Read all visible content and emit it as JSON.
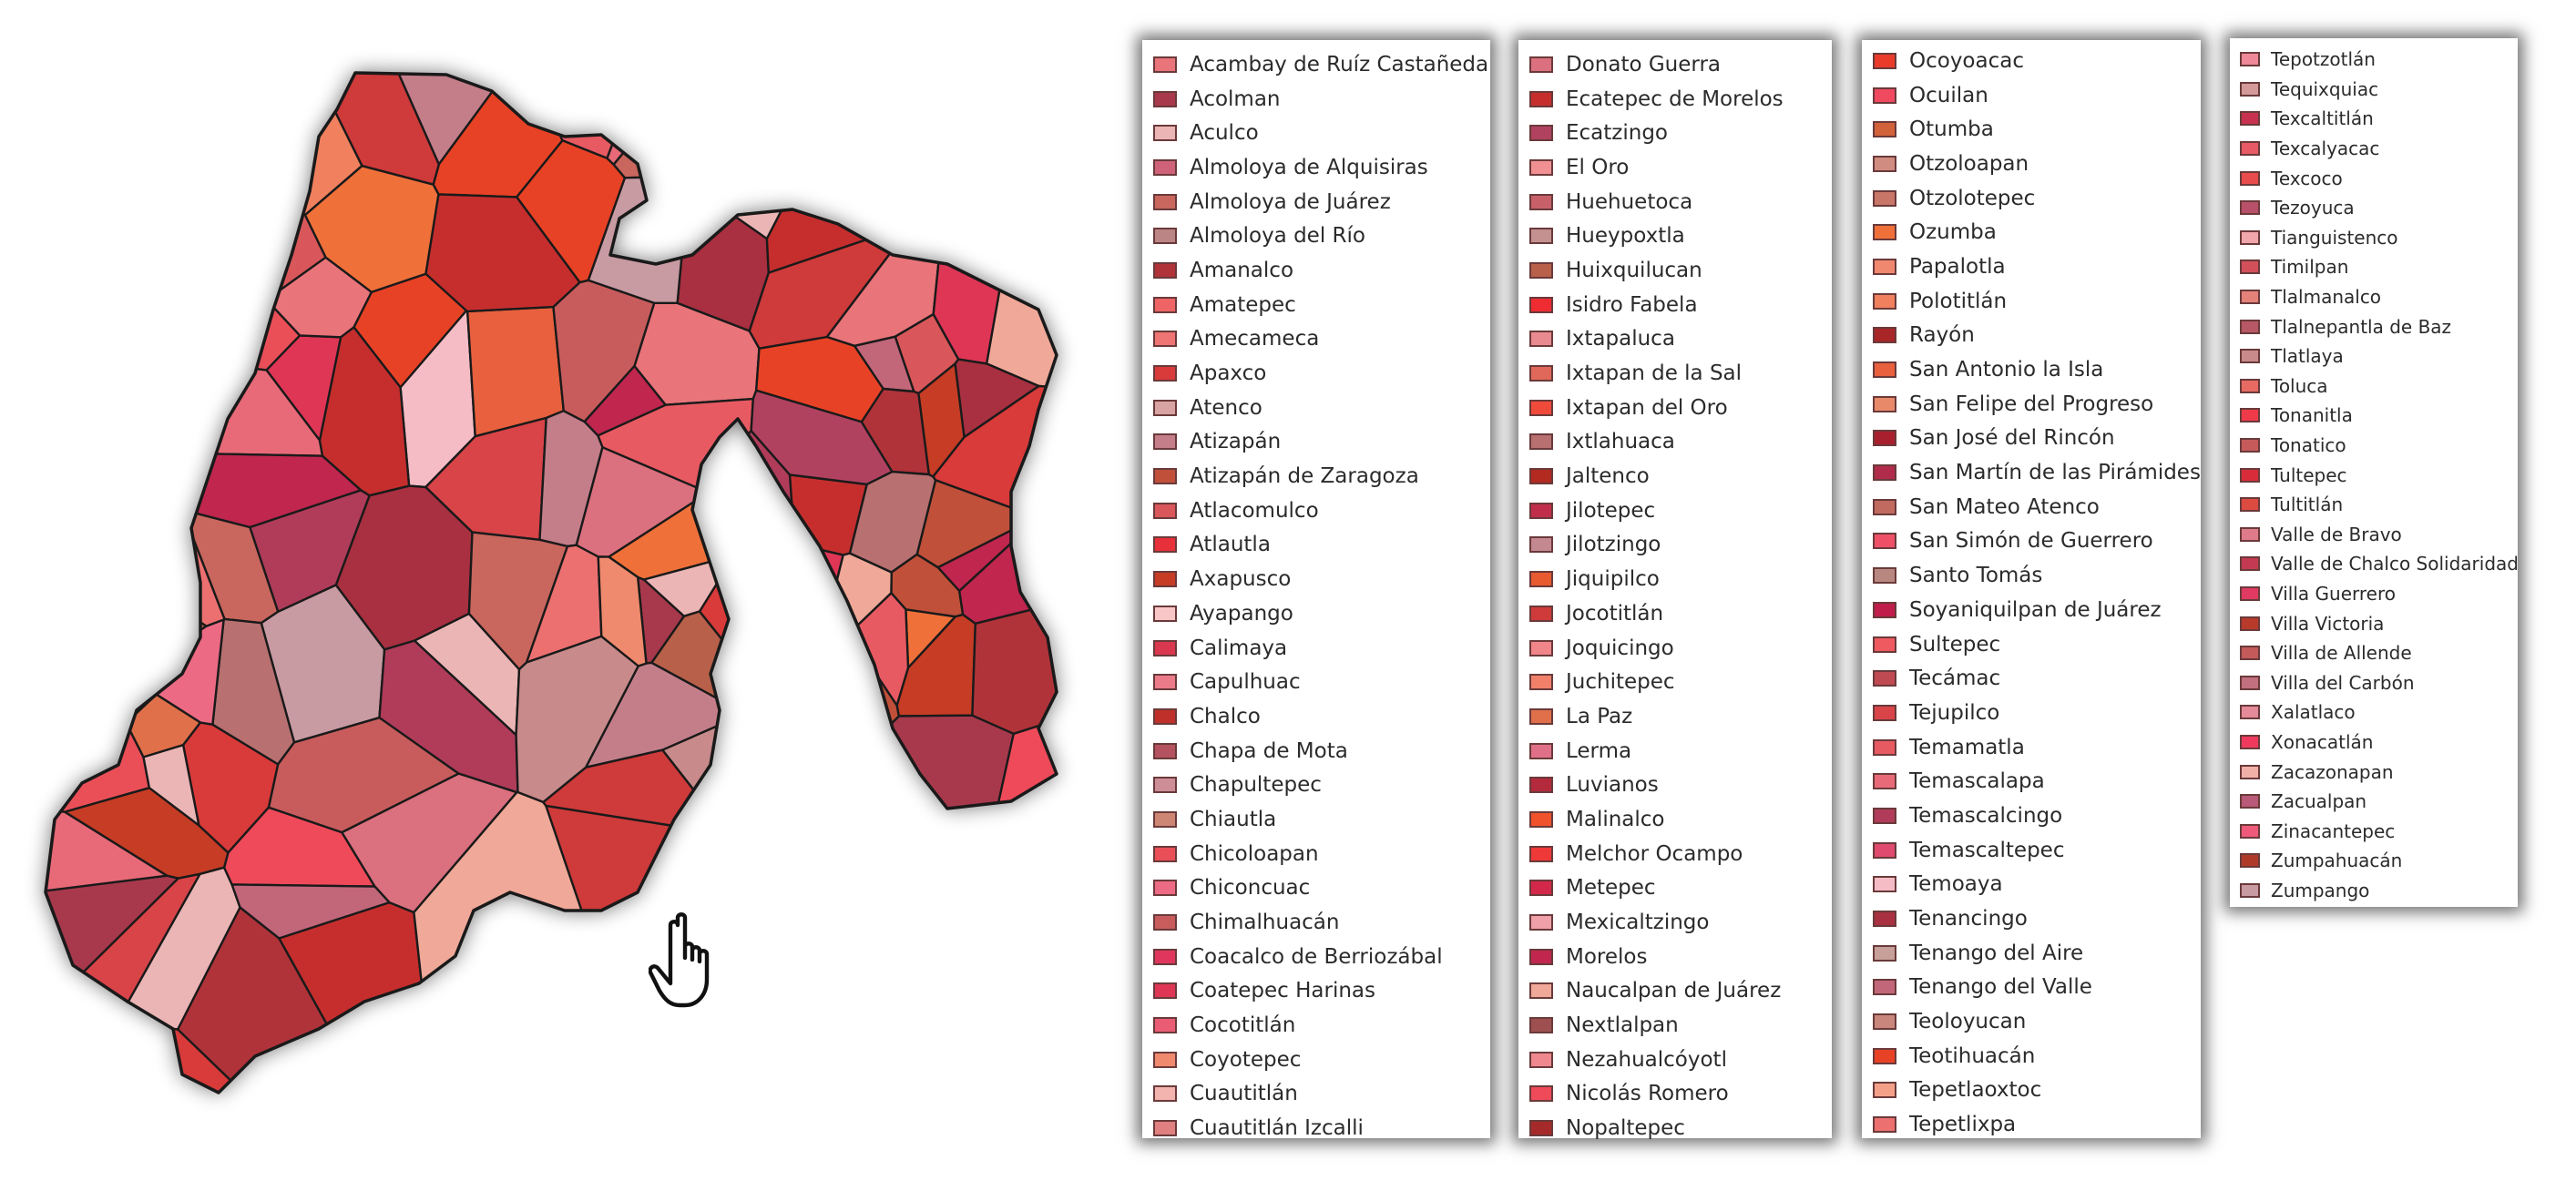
{
  "legend": {
    "columns": [
      [
        {
          "label": "Acambay de Ruíz Castañeda",
          "color": "#e9747a"
        },
        {
          "label": "Acolman",
          "color": "#a8394c"
        },
        {
          "label": "Aculco",
          "color": "#ebb5b5"
        },
        {
          "label": "Almoloya de Alquisiras",
          "color": "#cf6279"
        },
        {
          "label": "Almoloya de Juárez",
          "color": "#c9665e"
        },
        {
          "label": "Almoloya del Río",
          "color": "#bc8585"
        },
        {
          "label": "Amanalco",
          "color": "#b1333a"
        },
        {
          "label": "Amatepec",
          "color": "#ef6464"
        },
        {
          "label": "Amecameca",
          "color": "#ef7474"
        },
        {
          "label": "Apaxco",
          "color": "#d93a3a"
        },
        {
          "label": "Atenco",
          "color": "#d9a3a3"
        },
        {
          "label": "Atizapán",
          "color": "#c47e8a"
        },
        {
          "label": "Atizapán de Zaragoza",
          "color": "#c0503a"
        },
        {
          "label": "Atlacomulco",
          "color": "#d9575a"
        },
        {
          "label": "Atlautla",
          "color": "#e8303a"
        },
        {
          "label": "Axapusco",
          "color": "#c63c25"
        },
        {
          "label": "Ayapango",
          "color": "#f9c6c8"
        },
        {
          "label": "Calimaya",
          "color": "#d9384e"
        },
        {
          "label": "Capulhuac",
          "color": "#ec7b8a"
        },
        {
          "label": "Chalco",
          "color": "#c0302a"
        },
        {
          "label": "Chapa de Mota",
          "color": "#b45260"
        },
        {
          "label": "Chapultepec",
          "color": "#cd8e98"
        },
        {
          "label": "Chiautla",
          "color": "#cd8674"
        },
        {
          "label": "Chicoloapan",
          "color": "#ea4f58"
        },
        {
          "label": "Chiconcuac",
          "color": "#ec6a84"
        },
        {
          "label": "Chimalhuacán",
          "color": "#c85c5c"
        },
        {
          "label": "Coacalco de Berriozábal",
          "color": "#e0365e"
        },
        {
          "label": "Coatepec Harinas",
          "color": "#e03656"
        },
        {
          "label": "Cocotitlán",
          "color": "#ea5c74"
        },
        {
          "label": "Coyotepec",
          "color": "#ef8a6e"
        },
        {
          "label": "Cuautitlán",
          "color": "#f3b3ae"
        },
        {
          "label": "Cuautitlán Izcalli",
          "color": "#e08080"
        }
      ],
      [
        {
          "label": "Donato Guerra",
          "color": "#db707e"
        },
        {
          "label": "Ecatepec de Morelos",
          "color": "#c62e2e"
        },
        {
          "label": "Ecatzingo",
          "color": "#b04260"
        },
        {
          "label": "El Oro",
          "color": "#f19093"
        },
        {
          "label": "Huehuetoca",
          "color": "#c8606a"
        },
        {
          "label": "Hueypoxtla",
          "color": "#c49090"
        },
        {
          "label": "Huixquilucan",
          "color": "#b8604a"
        },
        {
          "label": "Isidro Fabela",
          "color": "#ef2c32"
        },
        {
          "label": "Ixtapaluca",
          "color": "#e88a90"
        },
        {
          "label": "Ixtapan de la Sal",
          "color": "#e0685a"
        },
        {
          "label": "Ixtapan del Oro",
          "color": "#f04a3a"
        },
        {
          "label": "Ixtlahuaca",
          "color": "#b87070"
        },
        {
          "label": "Jaltenco",
          "color": "#b22a20"
        },
        {
          "label": "Jilotepec",
          "color": "#c02e4a"
        },
        {
          "label": "Jilotzingo",
          "color": "#c48890"
        },
        {
          "label": "Jiquipilco",
          "color": "#e85a30"
        },
        {
          "label": "Jocotitlán",
          "color": "#cf3a3a"
        },
        {
          "label": "Joquicingo",
          "color": "#f0858a"
        },
        {
          "label": "Juchitepec",
          "color": "#f0806a"
        },
        {
          "label": "La Paz",
          "color": "#e0704a"
        },
        {
          "label": "Lerma",
          "color": "#e07088"
        },
        {
          "label": "Luvianos",
          "color": "#b32a3c"
        },
        {
          "label": "Malinalco",
          "color": "#f0522c"
        },
        {
          "label": "Melchor Ocampo",
          "color": "#ef3838"
        },
        {
          "label": "Metepec",
          "color": "#d3284a"
        },
        {
          "label": "Mexicaltzingo",
          "color": "#f0a0a8"
        },
        {
          "label": "Morelos",
          "color": "#c0264e"
        },
        {
          "label": "Naucalpan de Juárez",
          "color": "#f0a898"
        },
        {
          "label": "Nextlalpan",
          "color": "#9e5050"
        },
        {
          "label": "Nezahualcóyotl",
          "color": "#f08890"
        },
        {
          "label": "Nicolás Romero",
          "color": "#ef4a5a"
        },
        {
          "label": "Nopaltepec",
          "color": "#a62a2a"
        }
      ],
      [
        {
          "label": "Ocoyoacac",
          "color": "#ea3a2a"
        },
        {
          "label": "Ocuilan",
          "color": "#ef4a60"
        },
        {
          "label": "Otumba",
          "color": "#d2623a"
        },
        {
          "label": "Otzoloapan",
          "color": "#d08c80"
        },
        {
          "label": "Otzolotepec",
          "color": "#c87668"
        },
        {
          "label": "Ozumba",
          "color": "#f0703a"
        },
        {
          "label": "Papalotla",
          "color": "#f08870"
        },
        {
          "label": "Polotitlán",
          "color": "#f0805e"
        },
        {
          "label": "Rayón",
          "color": "#a82628"
        },
        {
          "label": "San Antonio la Isla",
          "color": "#e8603e"
        },
        {
          "label": "San Felipe del Progreso",
          "color": "#e88a6a"
        },
        {
          "label": "San José del Rincón",
          "color": "#a8202e"
        },
        {
          "label": "San Martín de las Pirámides",
          "color": "#b02c4a"
        },
        {
          "label": "San Mateo Atenco",
          "color": "#c06a60"
        },
        {
          "label": "San Simón de Guerrero",
          "color": "#ef5068"
        },
        {
          "label": "Santo Tomás",
          "color": "#b88880"
        },
        {
          "label": "Soyaniquilpan de Juárez",
          "color": "#c01e4a"
        },
        {
          "label": "Sultepec",
          "color": "#ef5a60"
        },
        {
          "label": "Tecámac",
          "color": "#c04a52"
        },
        {
          "label": "Tejupilco",
          "color": "#d84448"
        },
        {
          "label": "Temamatla",
          "color": "#e85a62"
        },
        {
          "label": "Temascalapa",
          "color": "#e86a78"
        },
        {
          "label": "Temascalcingo",
          "color": "#b03c5a"
        },
        {
          "label": "Temascaltepec",
          "color": "#e04a6e"
        },
        {
          "label": "Temoaya",
          "color": "#f5bcc6"
        },
        {
          "label": "Tenancingo",
          "color": "#a83040"
        },
        {
          "label": "Tenango del Aire",
          "color": "#c8a09a"
        },
        {
          "label": "Tenango del Valle",
          "color": "#c2667a"
        },
        {
          "label": "Teoloyucan",
          "color": "#c8867c"
        },
        {
          "label": "Teotihuacán",
          "color": "#e84226"
        },
        {
          "label": "Tepetlaoxtoc",
          "color": "#f4a088"
        },
        {
          "label": "Tepetlixpa",
          "color": "#ec7070"
        }
      ],
      [
        {
          "label": "Tepotzotlán",
          "color": "#ef8898"
        },
        {
          "label": "Tequixquiac",
          "color": "#d49a9a"
        },
        {
          "label": "Texcaltitlán",
          "color": "#c83250"
        },
        {
          "label": "Texcalyacac",
          "color": "#e85a66"
        },
        {
          "label": "Texcoco",
          "color": "#e84c4c"
        },
        {
          "label": "Tezoyuca",
          "color": "#b8506a"
        },
        {
          "label": "Tianguistenco",
          "color": "#f0a6aa"
        },
        {
          "label": "Timilpan",
          "color": "#d2505a"
        },
        {
          "label": "Tlalmanalco",
          "color": "#e4827a"
        },
        {
          "label": "Tlalnepantla de Baz",
          "color": "#b85866"
        },
        {
          "label": "Tlatlaya",
          "color": "#c88a8a"
        },
        {
          "label": "Toluca",
          "color": "#e86a62"
        },
        {
          "label": "Tonanitla",
          "color": "#ef3a4a"
        },
        {
          "label": "Tonatico",
          "color": "#c65a5a"
        },
        {
          "label": "Tultepec",
          "color": "#d82c3a"
        },
        {
          "label": "Tultitlán",
          "color": "#dd4a40"
        },
        {
          "label": "Valle de Bravo",
          "color": "#df7a8a"
        },
        {
          "label": "Valle de Chalco Solidaridad",
          "color": "#c43a52"
        },
        {
          "label": "Villa Guerrero",
          "color": "#e03a62"
        },
        {
          "label": "Villa Victoria",
          "color": "#b83a2a"
        },
        {
          "label": "Villa de Allende",
          "color": "#c45a5a"
        },
        {
          "label": "Villa del Carbón",
          "color": "#c27080"
        },
        {
          "label": "Xalatlaco",
          "color": "#e48a9a"
        },
        {
          "label": "Xonacatlán",
          "color": "#ef3a5e"
        },
        {
          "label": "Zacazonapan",
          "color": "#f0b0a8"
        },
        {
          "label": "Zacualpan",
          "color": "#b85a78"
        },
        {
          "label": "Zinacantepec",
          "color": "#ef5a7a"
        },
        {
          "label": "Zumpahuacán",
          "color": "#b03a2a"
        },
        {
          "label": "Zumpango",
          "color": "#c89aa2"
        }
      ]
    ]
  },
  "map": {
    "outline_color": "#1a1a1a",
    "fills": [
      "#ebb5b5",
      "#b04260",
      "#c0264e",
      "#e9747a",
      "#c0503a",
      "#c9665e",
      "#b1333a",
      "#e0704a",
      "#db707e",
      "#c47e8a",
      "#ef4a5a",
      "#a8394c",
      "#c85c5c",
      "#f0a898",
      "#d93a3a",
      "#ec7070",
      "#c62e2e",
      "#e8603e",
      "#c89aa2",
      "#ea4f58",
      "#b87070",
      "#f5bcc6",
      "#d84448",
      "#e85a62",
      "#c2667a",
      "#a83040",
      "#ef5068",
      "#e84226",
      "#b8604a",
      "#f0805e",
      "#c88a8a",
      "#e03656",
      "#cf3a3a",
      "#f0703a",
      "#b03c5a",
      "#ef8a6e",
      "#ec6a84",
      "#d9575a",
      "#c63c25",
      "#e86a78"
    ],
    "cursor_icon": "hand-pointer-icon"
  }
}
